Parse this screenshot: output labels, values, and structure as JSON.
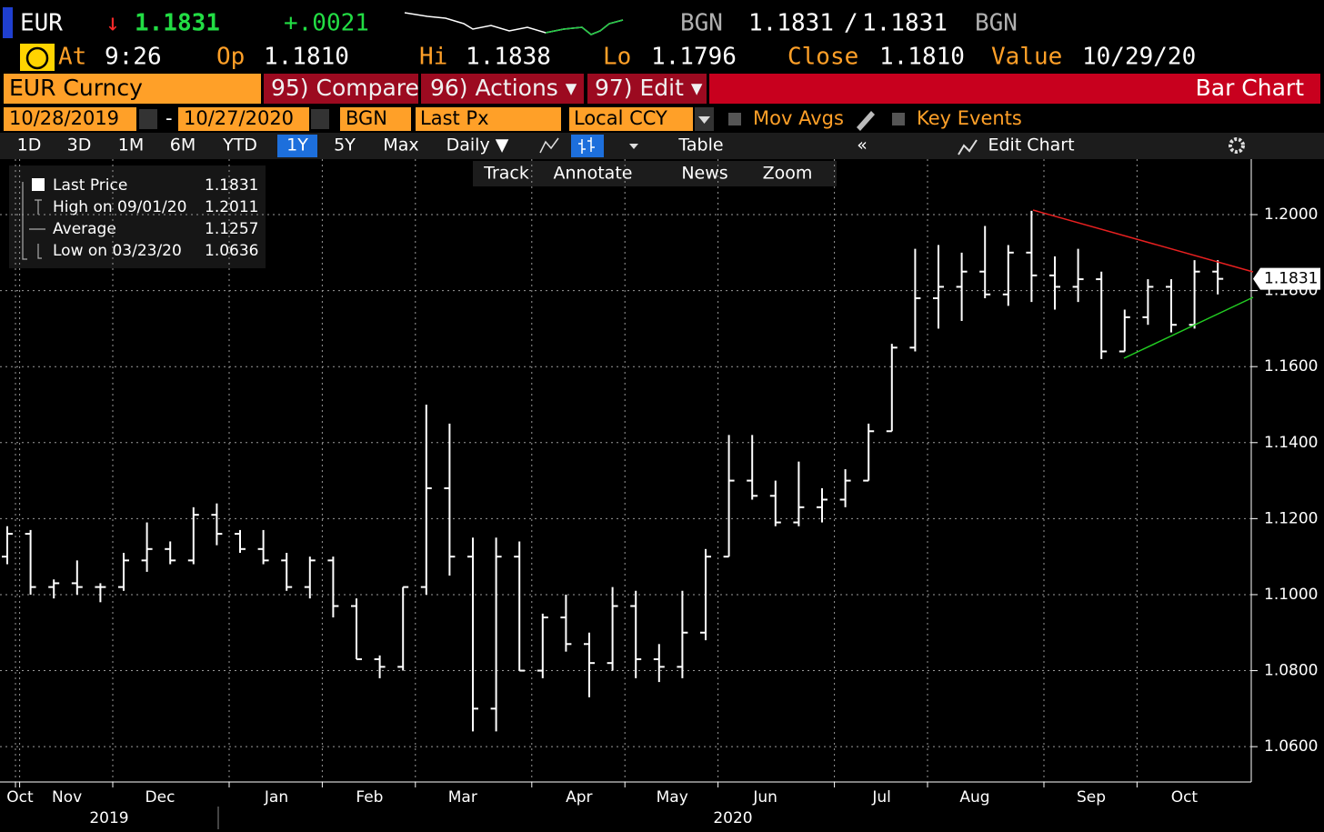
{
  "header": {
    "ticker": "EUR",
    "arrow": "↓",
    "price": "1.1831",
    "change": "+.0021",
    "source": "BGN",
    "bid": "1.1831",
    "sep": "/",
    "ask": "1.1831",
    "source2": "BGN"
  },
  "quote": {
    "at_label": "At",
    "time": "9:26",
    "open_label": "Op",
    "open": "1.1810",
    "high_label": "Hi",
    "high": "1.1838",
    "low_label": "Lo",
    "low": "1.1796",
    "close_label": "Close",
    "close": "1.1810",
    "value_label": "Value",
    "value_date": "10/29/20"
  },
  "menu": {
    "security": "EUR Curncy",
    "compare": "95) Compare",
    "actions": "96) Actions ▾",
    "edit": "97) Edit ▾",
    "view": "Bar Chart"
  },
  "settings": {
    "start": "10/28/2019",
    "dash": "-",
    "end": "10/27/2020",
    "source": "BGN",
    "field": "Last Px",
    "currency": "Local CCY",
    "mov_avgs": "Mov Avgs",
    "key_events": "Key Events"
  },
  "periods": [
    "1D",
    "3D",
    "1M",
    "6M",
    "YTD",
    "1Y",
    "5Y",
    "Max"
  ],
  "selected_period": "1Y",
  "toolbar": {
    "frequency": "Daily ▼",
    "table": "Table",
    "collapse": "«",
    "edit_chart": "Edit Chart"
  },
  "tools": [
    "Track",
    "Annotate",
    "News",
    "Zoom"
  ],
  "chart_data": {
    "type": "ohlc",
    "legend": [
      {
        "label": "Last Price",
        "value": "1.1831"
      },
      {
        "label": "High on 09/01/20",
        "value": "1.2011"
      },
      {
        "label": "Average",
        "value": "1.1257"
      },
      {
        "label": "Low on 03/23/20",
        "value": "1.0636"
      }
    ],
    "last_label": "1.1831",
    "years": [
      "2019",
      "2020"
    ],
    "categories": [
      "Oct",
      "Nov",
      null,
      null,
      null,
      "Dec",
      null,
      null,
      null,
      null,
      "Jan",
      null,
      null,
      null,
      "Feb",
      null,
      null,
      null,
      "Mar",
      null,
      null,
      null,
      null,
      "Apr",
      null,
      null,
      null,
      "May",
      null,
      null,
      null,
      "Jun",
      null,
      null,
      null,
      null,
      "Jul",
      null,
      null,
      null,
      "Aug",
      null,
      null,
      null,
      null,
      "Sep",
      null,
      null,
      null,
      "Oct",
      null,
      null,
      null
    ],
    "series": {
      "open": [
        1.11,
        1.116,
        1.102,
        1.103,
        1.102,
        1.102,
        1.109,
        1.112,
        1.109,
        1.121,
        1.116,
        1.112,
        1.109,
        1.102,
        1.109,
        1.097,
        1.083,
        1.081,
        1.102,
        1.128,
        1.11,
        1.07,
        1.11,
        1.08,
        1.094,
        1.087,
        1.082,
        1.097,
        1.083,
        1.081,
        1.09,
        1.11,
        1.13,
        1.126,
        1.119,
        1.123,
        1.125,
        1.13,
        1.143,
        1.165,
        1.178,
        1.181,
        1.185,
        1.179,
        1.19,
        1.184,
        1.181,
        1.183,
        1.164,
        1.173,
        1.181,
        1.171,
        1.185
      ],
      "high": [
        1.118,
        1.117,
        1.104,
        1.109,
        1.103,
        1.111,
        1.119,
        1.114,
        1.123,
        1.124,
        1.117,
        1.117,
        1.111,
        1.11,
        1.11,
        1.099,
        1.084,
        1.102,
        1.15,
        1.145,
        1.115,
        1.115,
        1.114,
        1.095,
        1.1,
        1.09,
        1.102,
        1.101,
        1.087,
        1.101,
        1.112,
        1.142,
        1.142,
        1.13,
        1.135,
        1.128,
        1.133,
        1.145,
        1.166,
        1.191,
        1.192,
        1.19,
        1.197,
        1.192,
        1.201,
        1.189,
        1.191,
        1.185,
        1.175,
        1.183,
        1.183,
        1.188,
        1.188
      ],
      "low": [
        1.108,
        1.1,
        1.099,
        1.1,
        1.098,
        1.101,
        1.106,
        1.108,
        1.108,
        1.113,
        1.111,
        1.108,
        1.101,
        1.099,
        1.094,
        1.083,
        1.078,
        1.08,
        1.1,
        1.105,
        1.064,
        1.064,
        1.08,
        1.078,
        1.085,
        1.073,
        1.08,
        1.078,
        1.077,
        1.078,
        1.088,
        1.11,
        1.125,
        1.118,
        1.118,
        1.119,
        1.123,
        1.13,
        1.143,
        1.164,
        1.17,
        1.172,
        1.178,
        1.176,
        1.177,
        1.175,
        1.177,
        1.162,
        1.164,
        1.171,
        1.169,
        1.17,
        1.179
      ],
      "close": [
        1.116,
        1.102,
        1.103,
        1.102,
        1.102,
        1.109,
        1.112,
        1.109,
        1.121,
        1.116,
        1.112,
        1.109,
        1.102,
        1.109,
        1.097,
        1.083,
        1.081,
        1.102,
        1.128,
        1.11,
        1.07,
        1.11,
        1.08,
        1.094,
        1.087,
        1.082,
        1.097,
        1.083,
        1.081,
        1.09,
        1.11,
        1.13,
        1.126,
        1.119,
        1.123,
        1.125,
        1.13,
        1.143,
        1.165,
        1.178,
        1.181,
        1.185,
        1.179,
        1.19,
        1.184,
        1.181,
        1.183,
        1.164,
        1.173,
        1.181,
        1.171,
        1.185,
        1.1831
      ]
    },
    "color": "#ffffff",
    "ylim": [
      1.0507,
      1.2146
    ],
    "yticks": [
      {
        "value": 1.06,
        "label": "1.0600"
      },
      {
        "value": 1.08,
        "label": "1.0800"
      },
      {
        "value": 1.1,
        "label": "1.1000"
      },
      {
        "value": 1.12,
        "label": "1.1200"
      },
      {
        "value": 1.14,
        "label": "1.1400"
      },
      {
        "value": 1.16,
        "label": "1.1600"
      },
      {
        "value": 1.18,
        "label": "1.1800"
      },
      {
        "value": 1.2,
        "label": "1.2000"
      }
    ],
    "grid": true
  }
}
